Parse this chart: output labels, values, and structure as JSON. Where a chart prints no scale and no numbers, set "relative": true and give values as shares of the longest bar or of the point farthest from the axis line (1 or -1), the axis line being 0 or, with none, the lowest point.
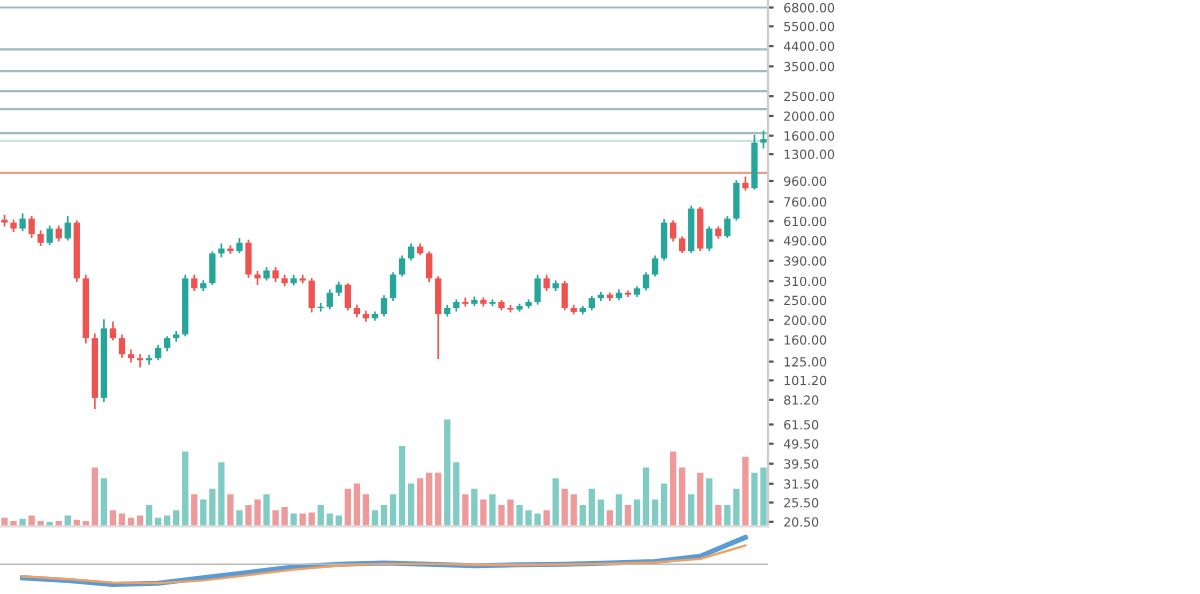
{
  "chart_data": [
    {
      "type": "candlestick",
      "log": "y",
      "ohlc": [
        [
          620,
          650,
          580,
          600
        ],
        [
          600,
          615,
          545,
          561
        ],
        [
          561,
          660,
          550,
          628
        ],
        [
          628,
          640,
          510,
          528
        ],
        [
          528,
          545,
          465,
          478
        ],
        [
          478,
          575,
          470,
          561
        ],
        [
          561,
          575,
          490,
          502
        ],
        [
          502,
          640,
          495,
          600
        ],
        [
          600,
          610,
          310,
          320
        ],
        [
          320,
          330,
          155,
          163
        ],
        [
          163,
          170,
          74,
          83
        ],
        [
          83,
          200,
          80,
          182
        ],
        [
          182,
          195,
          160,
          163
        ],
        [
          163,
          168,
          132,
          136
        ],
        [
          136,
          142,
          125,
          130
        ],
        [
          130,
          135,
          118,
          127
        ],
        [
          127,
          134,
          122,
          130
        ],
        [
          130,
          150,
          128,
          146
        ],
        [
          146,
          165,
          142,
          163
        ],
        [
          163,
          175,
          158,
          170
        ],
        [
          170,
          330,
          168,
          320
        ],
        [
          320,
          330,
          280,
          286
        ],
        [
          286,
          310,
          280,
          303
        ],
        [
          303,
          430,
          300,
          424
        ],
        [
          424,
          470,
          410,
          448
        ],
        [
          448,
          460,
          425,
          435
        ],
        [
          435,
          500,
          430,
          478
        ],
        [
          478,
          490,
          325,
          334
        ],
        [
          334,
          345,
          300,
          320
        ],
        [
          320,
          360,
          315,
          350
        ],
        [
          350,
          360,
          310,
          320
        ],
        [
          320,
          330,
          295,
          303
        ],
        [
          303,
          330,
          298,
          320
        ],
        [
          320,
          330,
          305,
          312
        ],
        [
          312,
          318,
          220,
          229
        ],
        [
          229,
          240,
          222,
          232
        ],
        [
          232,
          280,
          228,
          272
        ],
        [
          272,
          305,
          265,
          298
        ],
        [
          298,
          300,
          225,
          229
        ],
        [
          229,
          235,
          208,
          214
        ],
        [
          214,
          220,
          198,
          204
        ],
        [
          204,
          218,
          200,
          214
        ],
        [
          214,
          262,
          210,
          256
        ],
        [
          256,
          340,
          250,
          334
        ],
        [
          334,
          410,
          330,
          401
        ],
        [
          401,
          470,
          395,
          458
        ],
        [
          458,
          470,
          420,
          424
        ],
        [
          424,
          430,
          310,
          320
        ],
        [
          320,
          325,
          130,
          214
        ],
        [
          214,
          235,
          210,
          229
        ],
        [
          229,
          250,
          222,
          245
        ],
        [
          245,
          255,
          235,
          240
        ],
        [
          240,
          258,
          236,
          251
        ],
        [
          251,
          256,
          235,
          240
        ],
        [
          240,
          250,
          236,
          245
        ],
        [
          245,
          248,
          225,
          229
        ],
        [
          229,
          235,
          220,
          225
        ],
        [
          225,
          238,
          222,
          234
        ],
        [
          234,
          250,
          230,
          245
        ],
        [
          245,
          330,
          240,
          320
        ],
        [
          320,
          330,
          280,
          286
        ],
        [
          286,
          310,
          280,
          303
        ],
        [
          303,
          308,
          225,
          229
        ],
        [
          229,
          235,
          215,
          219
        ],
        [
          219,
          232,
          215,
          229
        ],
        [
          229,
          260,
          225,
          256
        ],
        [
          256,
          272,
          250,
          266
        ],
        [
          266,
          270,
          250,
          256
        ],
        [
          256,
          280,
          252,
          272
        ],
        [
          272,
          276,
          262,
          266
        ],
        [
          266,
          290,
          262,
          286
        ],
        [
          286,
          340,
          282,
          334
        ],
        [
          334,
          410,
          330,
          401
        ],
        [
          401,
          620,
          395,
          600
        ],
        [
          600,
          610,
          490,
          502
        ],
        [
          502,
          510,
          430,
          435
        ],
        [
          435,
          720,
          430,
          703
        ],
        [
          703,
          710,
          440,
          448
        ],
        [
          448,
          570,
          440,
          561
        ],
        [
          561,
          570,
          505,
          515
        ],
        [
          515,
          640,
          510,
          628
        ],
        [
          628,
          960,
          620,
          940
        ],
        [
          940,
          1000,
          870,
          885
        ],
        [
          885,
          1600,
          880,
          1480
        ],
        [
          1480,
          1680,
          1400,
          1540
        ]
      ],
      "categories": [
        null,
        null,
        null,
        null,
        null,
        null,
        null,
        null,
        null,
        null,
        null,
        null,
        null,
        null,
        null,
        null,
        null,
        null,
        null,
        null,
        null,
        null,
        null,
        null,
        null,
        null,
        null,
        null,
        null,
        null,
        null,
        null,
        null,
        null,
        null,
        null,
        null,
        null,
        null,
        null,
        null,
        null,
        null,
        null,
        null,
        null,
        null,
        null,
        null,
        null,
        null,
        null,
        null,
        null,
        null,
        null,
        null,
        null,
        null,
        null,
        null,
        null,
        null,
        null,
        null,
        null,
        null,
        null,
        null,
        null,
        null,
        null,
        null,
        null,
        null,
        null,
        null,
        null,
        null,
        null,
        null,
        null,
        null,
        null,
        null
      ],
      "colors": [
        "#ef5350",
        "#ef5350",
        "#26a69a",
        "#ef5350",
        "#ef5350",
        "#26a69a",
        "#ef5350",
        "#26a69a",
        "#ef5350",
        "#ef5350",
        "#ef5350",
        "#26a69a",
        "#ef5350",
        "#ef5350",
        "#ef5350",
        "#ef5350",
        "#26a69a",
        "#26a69a",
        "#26a69a",
        "#26a69a",
        "#26a69a",
        "#ef5350",
        "#26a69a",
        "#26a69a",
        "#26a69a",
        "#ef5350",
        "#26a69a",
        "#ef5350",
        "#ef5350",
        "#26a69a",
        "#ef5350",
        "#ef5350",
        "#26a69a",
        "#ef5350",
        "#ef5350",
        "#26a69a",
        "#26a69a",
        "#26a69a",
        "#ef5350",
        "#ef5350",
        "#ef5350",
        "#26a69a",
        "#26a69a",
        "#26a69a",
        "#26a69a",
        "#26a69a",
        "#ef5350",
        "#ef5350",
        "#ef5350",
        "#26a69a",
        "#26a69a",
        "#ef5350",
        "#26a69a",
        "#ef5350",
        "#26a69a",
        "#ef5350",
        "#ef5350",
        "#26a69a",
        "#26a69a",
        "#26a69a",
        "#ef5350",
        "#26a69a",
        "#ef5350",
        "#ef5350",
        "#26a69a",
        "#26a69a",
        "#26a69a",
        "#ef5350",
        "#26a69a",
        "#ef5350",
        "#26a69a",
        "#26a69a",
        "#26a69a",
        "#26a69a",
        "#ef5350",
        "#ef5350",
        "#26a69a",
        "#ef5350",
        "#26a69a",
        "#ef5350",
        "#26a69a",
        "#26a69a",
        "#ef5350",
        "#26a69a",
        "#26a69a"
      ],
      "ylim": [
        19.5,
        7400
      ],
      "yticks": [
        {
          "value": 6800,
          "label": "6800.00"
        },
        {
          "value": 5500,
          "label": "5500.00"
        },
        {
          "value": 4400,
          "label": "4400.00"
        },
        {
          "value": 3500,
          "label": "3500.00"
        },
        {
          "value": 2500,
          "label": "2500.00"
        },
        {
          "value": 2000,
          "label": "2000.00"
        },
        {
          "value": 1600,
          "label": "1600.00"
        },
        {
          "value": 1300,
          "label": "1300.00"
        },
        {
          "value": 960,
          "label": "960.00"
        },
        {
          "value": 760,
          "label": "760.00"
        },
        {
          "value": 610,
          "label": "610.00"
        },
        {
          "value": 490,
          "label": "490.00"
        },
        {
          "value": 390,
          "label": "390.00"
        },
        {
          "value": 310,
          "label": "310.00"
        },
        {
          "value": 250,
          "label": "250.00"
        },
        {
          "value": 200,
          "label": "200.00"
        },
        {
          "value": 160,
          "label": "160.00"
        },
        {
          "value": 125,
          "label": "125.00"
        },
        {
          "value": 101.2,
          "label": "101.20"
        },
        {
          "value": 81.2,
          "label": "81.20"
        },
        {
          "value": 61.5,
          "label": "61.50"
        },
        {
          "value": 49.5,
          "label": "49.50"
        },
        {
          "value": 39.5,
          "label": "39.50"
        },
        {
          "value": 31.5,
          "label": "31.50"
        },
        {
          "value": 25.5,
          "label": "25.50"
        },
        {
          "value": 20.5,
          "label": "20.50"
        }
      ],
      "tick_labels": "y",
      "grid": false,
      "ref_lines": [
        {
          "axis": "y",
          "value": 6800,
          "color": "#9fbcbc"
        },
        {
          "axis": "y",
          "value": 4243,
          "color": "#9fbcbc"
        },
        {
          "axis": "y",
          "value": 3313,
          "color": "#9fbcbc"
        },
        {
          "axis": "y",
          "value": 2646,
          "color": "#9fbcbc"
        },
        {
          "axis": "y",
          "value": 2162,
          "color": "#9fbcbc"
        },
        {
          "axis": "y",
          "value": 1649,
          "color": "#9fbcbc"
        },
        {
          "axis": "y",
          "value": 1509,
          "color": "#cfdede"
        },
        {
          "axis": "y",
          "value": 1053,
          "color": "#e8a08a"
        }
      ]
    },
    {
      "type": "bar",
      "relative": true,
      "tick_labels": false,
      "values": [
        0.08,
        0.05,
        0.07,
        0.1,
        0.05,
        0.04,
        0.05,
        0.1,
        0.06,
        0.05,
        0.55,
        0.45,
        0.15,
        0.12,
        0.08,
        0.1,
        0.2,
        0.08,
        0.1,
        0.15,
        0.7,
        0.3,
        0.25,
        0.35,
        0.6,
        0.3,
        0.15,
        0.2,
        0.25,
        0.3,
        0.15,
        0.18,
        0.12,
        0.12,
        0.13,
        0.2,
        0.12,
        0.1,
        0.35,
        0.4,
        0.3,
        0.15,
        0.2,
        0.3,
        0.75,
        0.4,
        0.45,
        0.5,
        0.5,
        1.0,
        0.6,
        0.3,
        0.35,
        0.25,
        0.3,
        0.2,
        0.25,
        0.2,
        0.15,
        0.12,
        0.15,
        0.45,
        0.35,
        0.3,
        0.2,
        0.35,
        0.25,
        0.15,
        0.3,
        0.2,
        0.25,
        0.55,
        0.25,
        0.4,
        0.7,
        0.55,
        0.3,
        0.5,
        0.45,
        0.2,
        0.2,
        0.35,
        0.65,
        0.5,
        0.55
      ],
      "categories": [
        null,
        null,
        null,
        null,
        null,
        null,
        null,
        null,
        null,
        null,
        null,
        null,
        null,
        null,
        null,
        null,
        null,
        null,
        null,
        null,
        null,
        null,
        null,
        null,
        null,
        null,
        null,
        null,
        null,
        null,
        null,
        null,
        null,
        null,
        null,
        null,
        null,
        null,
        null,
        null,
        null,
        null,
        null,
        null,
        null,
        null,
        null,
        null,
        null,
        null,
        null,
        null,
        null,
        null,
        null,
        null,
        null,
        null,
        null,
        null,
        null,
        null,
        null,
        null,
        null,
        null,
        null,
        null,
        null,
        null,
        null,
        null,
        null,
        null,
        null,
        null,
        null,
        null,
        null,
        null,
        null,
        null,
        null,
        null,
        null
      ],
      "colors": [
        "#ef9a9a",
        "#ef9a9a",
        "#80cbc4",
        "#ef9a9a",
        "#ef9a9a",
        "#80cbc4",
        "#ef9a9a",
        "#80cbc4",
        "#ef9a9a",
        "#ef9a9a",
        "#ef9a9a",
        "#80cbc4",
        "#ef9a9a",
        "#ef9a9a",
        "#ef9a9a",
        "#ef9a9a",
        "#80cbc4",
        "#80cbc4",
        "#80cbc4",
        "#80cbc4",
        "#80cbc4",
        "#ef9a9a",
        "#80cbc4",
        "#80cbc4",
        "#80cbc4",
        "#ef9a9a",
        "#80cbc4",
        "#ef9a9a",
        "#ef9a9a",
        "#80cbc4",
        "#ef9a9a",
        "#ef9a9a",
        "#80cbc4",
        "#ef9a9a",
        "#ef9a9a",
        "#80cbc4",
        "#80cbc4",
        "#80cbc4",
        "#ef9a9a",
        "#ef9a9a",
        "#ef9a9a",
        "#80cbc4",
        "#80cbc4",
        "#80cbc4",
        "#80cbc4",
        "#80cbc4",
        "#ef9a9a",
        "#ef9a9a",
        "#ef9a9a",
        "#80cbc4",
        "#80cbc4",
        "#ef9a9a",
        "#80cbc4",
        "#ef9a9a",
        "#80cbc4",
        "#ef9a9a",
        "#ef9a9a",
        "#80cbc4",
        "#80cbc4",
        "#80cbc4",
        "#ef9a9a",
        "#80cbc4",
        "#ef9a9a",
        "#ef9a9a",
        "#80cbc4",
        "#80cbc4",
        "#80cbc4",
        "#ef9a9a",
        "#80cbc4",
        "#ef9a9a",
        "#80cbc4",
        "#80cbc4",
        "#80cbc4",
        "#80cbc4",
        "#ef9a9a",
        "#ef9a9a",
        "#80cbc4",
        "#ef9a9a",
        "#80cbc4",
        "#ef9a9a",
        "#80cbc4",
        "#80cbc4",
        "#ef9a9a",
        "#80cbc4",
        "#80cbc4"
      ]
    },
    {
      "type": "line",
      "relative": true,
      "tick_labels": false,
      "categories": [
        null,
        null,
        null,
        null,
        null,
        null,
        null,
        null,
        null,
        null,
        null,
        null,
        null,
        null,
        null,
        null,
        null
      ],
      "series": [
        {
          "color": "#5b9bd5",
          "values": [
            -0.5,
            -0.6,
            -0.75,
            -0.7,
            -0.5,
            -0.3,
            -0.1,
            0,
            0.05,
            0.0,
            -0.05,
            -0.02,
            0.0,
            0.05,
            0.1,
            0.3,
            1.0
          ]
        },
        {
          "color": "#f0a060",
          "values": [
            -0.45,
            -0.55,
            -0.68,
            -0.7,
            -0.6,
            -0.4,
            -0.2,
            -0.05,
            0.02,
            0.02,
            -0.02,
            -0.03,
            -0.01,
            0.03,
            0.07,
            0.2,
            0.7
          ]
        }
      ]
    }
  ]
}
